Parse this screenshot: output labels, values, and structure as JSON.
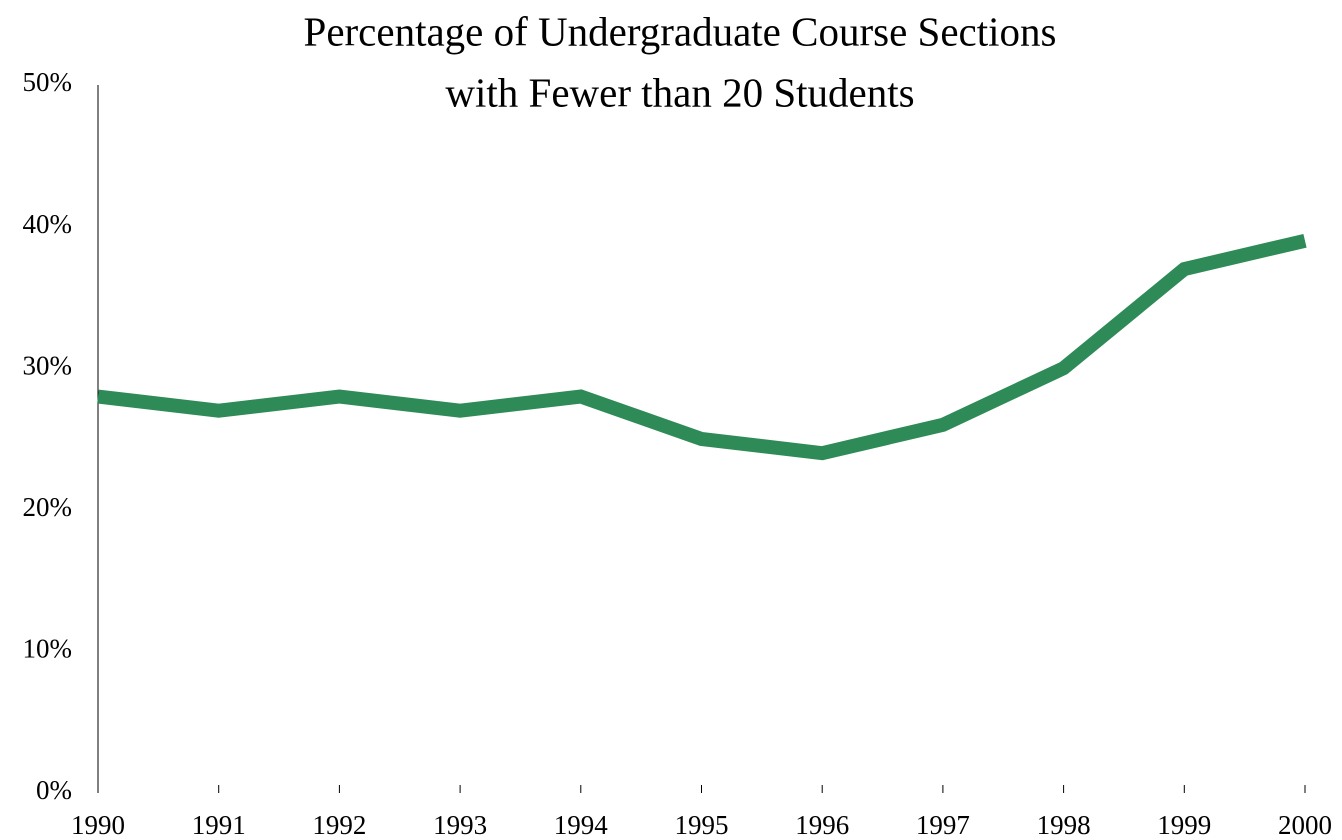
{
  "chart_data": {
    "type": "line",
    "title": [
      "Percentage of Undergraduate Course Sections",
      "with Fewer than 20 Students"
    ],
    "x": [
      1990,
      1991,
      1992,
      1993,
      1994,
      1995,
      1996,
      1997,
      1998,
      1999,
      2000
    ],
    "series": [
      {
        "color": "#2e8b57",
        "values": [
          28,
          27,
          28,
          27,
          28,
          25,
          24,
          26,
          30,
          37,
          39
        ]
      }
    ],
    "xlim": [
      1990,
      2000
    ],
    "xticks": [
      1990,
      1991,
      1992,
      1993,
      1994,
      1995,
      1996,
      1997,
      1998,
      1999,
      2000
    ],
    "ylim": [
      0,
      50
    ],
    "yticks": [
      {
        "value": 0,
        "label": "0%"
      },
      {
        "value": 10,
        "label": "10%"
      },
      {
        "value": 20,
        "label": "20%"
      },
      {
        "value": 30,
        "label": "30%"
      },
      {
        "value": 40,
        "label": "40%"
      },
      {
        "value": 50,
        "label": "50%"
      }
    ],
    "grid": false
  }
}
